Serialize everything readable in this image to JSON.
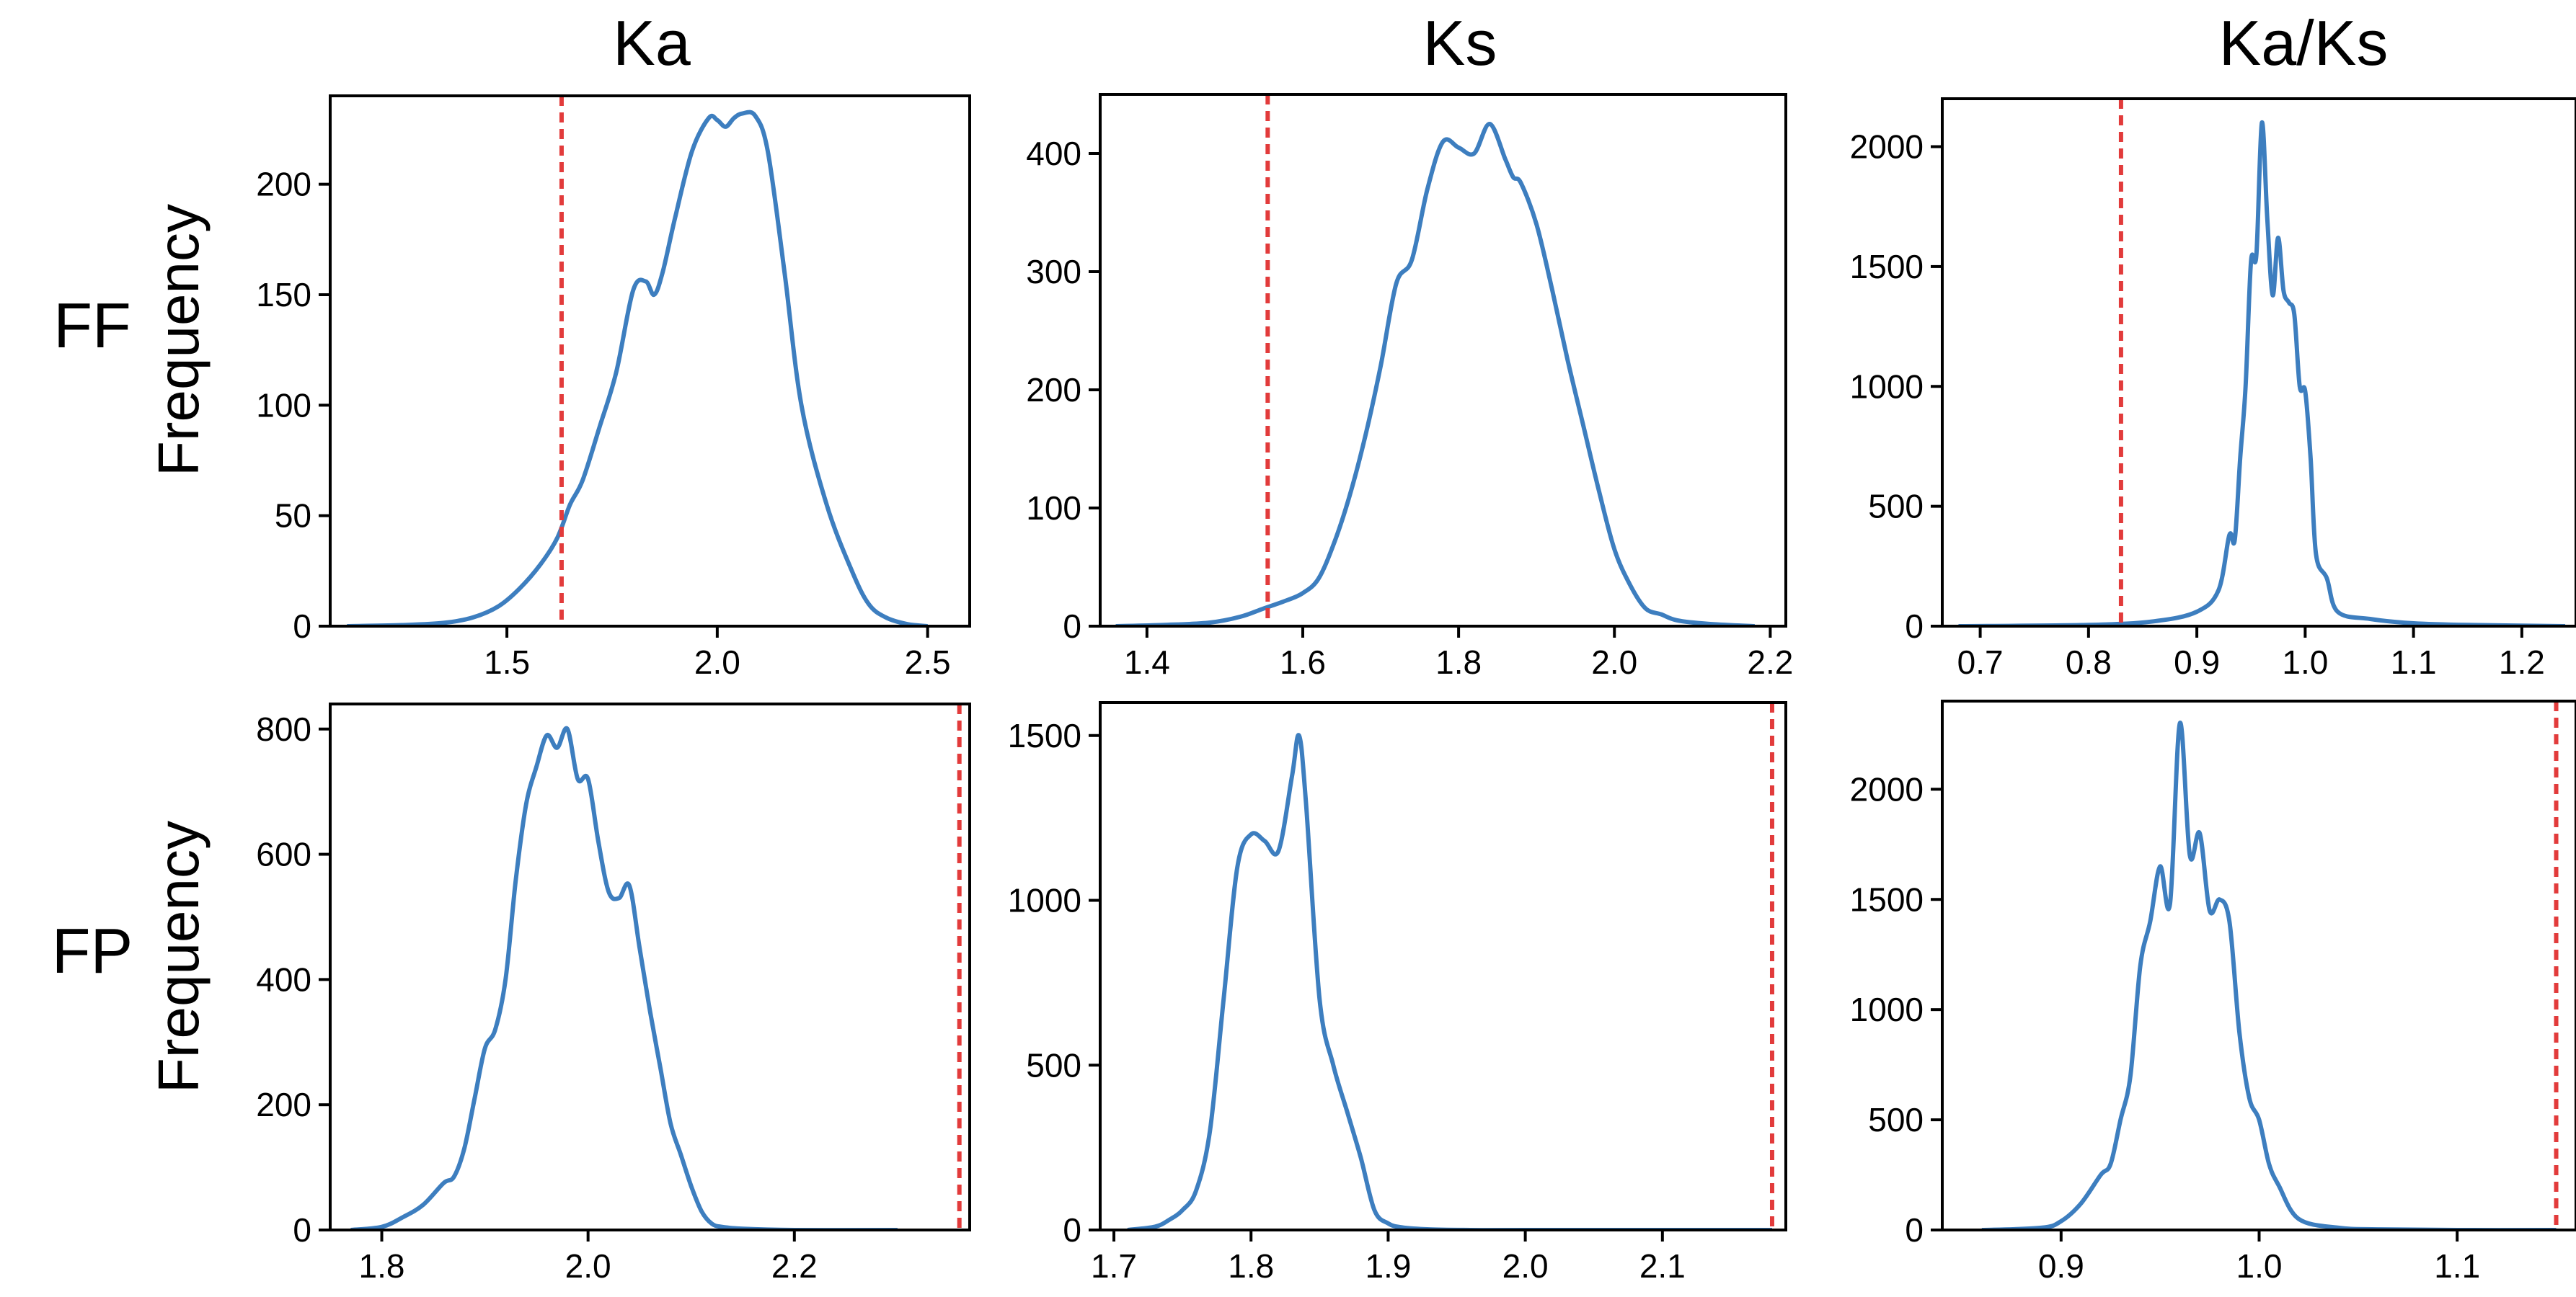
{
  "column_titles": [
    "Ka",
    "Ks",
    "Ka/Ks"
  ],
  "row_labels": [
    "FF",
    "FP"
  ],
  "ylabel": "Frequency",
  "colors": {
    "curve": "#3d7ebf",
    "reference": "#e23b3b",
    "axis": "#000000"
  },
  "chart_data": [
    {
      "type": "line",
      "row": "FF",
      "column": "Ka",
      "title": "Ka",
      "xlabel": "",
      "ylabel": "Frequency",
      "xlim": [
        1.08,
        2.6
      ],
      "ylim": [
        0,
        240
      ],
      "xticks": [
        1.5,
        2.0,
        2.5
      ],
      "yticks": [
        0,
        50,
        100,
        150,
        200
      ],
      "reference_line_x": 1.63,
      "series": [
        {
          "x": [
            1.12,
            1.25,
            1.35,
            1.42,
            1.48,
            1.53,
            1.58,
            1.62,
            1.65,
            1.68,
            1.72,
            1.76,
            1.8,
            1.83,
            1.85,
            1.87,
            1.9,
            1.94,
            1.98,
            2.0,
            2.02,
            2.04,
            2.06,
            2.09,
            2.12,
            2.16,
            2.2,
            2.26,
            2.32,
            2.36,
            2.4,
            2.45,
            2.5
          ],
          "y": [
            0,
            0.5,
            1.5,
            4,
            9,
            17,
            28,
            40,
            55,
            66,
            90,
            115,
            152,
            156,
            150,
            160,
            185,
            215,
            230,
            229,
            226,
            230,
            232,
            231,
            215,
            160,
            100,
            55,
            25,
            10,
            4,
            1,
            0
          ]
        }
      ]
    },
    {
      "type": "line",
      "row": "FF",
      "column": "Ks",
      "title": "Ks",
      "xlabel": "",
      "ylabel": "",
      "xlim": [
        1.34,
        2.22
      ],
      "ylim": [
        0,
        450
      ],
      "xticks": [
        1.4,
        1.6,
        1.8,
        2.0,
        2.2
      ],
      "yticks": [
        0,
        100,
        200,
        300,
        400
      ],
      "reference_line_x": 1.555,
      "series": [
        {
          "x": [
            1.36,
            1.42,
            1.48,
            1.52,
            1.55,
            1.58,
            1.6,
            1.62,
            1.64,
            1.66,
            1.68,
            1.7,
            1.72,
            1.74,
            1.76,
            1.78,
            1.8,
            1.82,
            1.84,
            1.86,
            1.87,
            1.88,
            1.9,
            1.92,
            1.94,
            1.96,
            1.98,
            2.0,
            2.02,
            2.04,
            2.06,
            2.08,
            2.12,
            2.18
          ],
          "y": [
            0,
            1,
            3,
            8,
            15,
            22,
            28,
            40,
            70,
            110,
            160,
            220,
            290,
            310,
            370,
            410,
            405,
            400,
            425,
            395,
            380,
            375,
            340,
            285,
            225,
            170,
            115,
            65,
            35,
            15,
            10,
            5,
            2,
            0
          ]
        }
      ]
    },
    {
      "type": "line",
      "row": "FF",
      "column": "Ka/Ks",
      "title": "Ka/Ks",
      "xlabel": "",
      "ylabel": "",
      "xlim": [
        0.665,
        1.25
      ],
      "ylim": [
        0,
        2200
      ],
      "xticks": [
        0.7,
        0.8,
        0.9,
        1.0,
        1.1,
        1.2
      ],
      "yticks": [
        0,
        500,
        1000,
        1500,
        2000
      ],
      "reference_line_x": 0.83,
      "series": [
        {
          "x": [
            0.68,
            0.8,
            0.86,
            0.9,
            0.92,
            0.93,
            0.935,
            0.94,
            0.945,
            0.95,
            0.955,
            0.96,
            0.965,
            0.97,
            0.975,
            0.98,
            0.985,
            0.99,
            0.995,
            1.0,
            1.005,
            1.01,
            1.02,
            1.03,
            1.06,
            1.1,
            1.15,
            1.24
          ],
          "y": [
            0,
            5,
            20,
            60,
            150,
            380,
            360,
            700,
            1000,
            1520,
            1550,
            2100,
            1700,
            1380,
            1620,
            1400,
            1350,
            1300,
            1000,
            980,
            700,
            300,
            200,
            60,
            30,
            12,
            5,
            0
          ]
        }
      ]
    },
    {
      "type": "line",
      "row": "FP",
      "column": "Ka",
      "title": "",
      "xlabel": "",
      "ylabel": "Frequency",
      "xlim": [
        1.75,
        2.37
      ],
      "ylim": [
        0,
        840
      ],
      "xticks": [
        1.8,
        2.0,
        2.2
      ],
      "yticks": [
        0,
        200,
        400,
        600,
        800
      ],
      "reference_line_x": 2.36,
      "series": [
        {
          "x": [
            1.77,
            1.8,
            1.82,
            1.84,
            1.86,
            1.87,
            1.88,
            1.89,
            1.9,
            1.91,
            1.92,
            1.93,
            1.94,
            1.95,
            1.96,
            1.97,
            1.98,
            1.99,
            2.0,
            2.01,
            2.02,
            2.03,
            2.04,
            2.05,
            2.06,
            2.07,
            2.08,
            2.09,
            2.1,
            2.11,
            2.12,
            2.13,
            2.15,
            2.2,
            2.3
          ],
          "y": [
            0,
            5,
            20,
            40,
            75,
            85,
            130,
            210,
            290,
            320,
            400,
            560,
            680,
            740,
            790,
            770,
            800,
            720,
            720,
            620,
            540,
            530,
            550,
            450,
            350,
            260,
            170,
            120,
            70,
            30,
            10,
            5,
            2,
            0,
            0
          ]
        }
      ]
    },
    {
      "type": "line",
      "row": "FP",
      "column": "Ks",
      "title": "",
      "xlabel": "",
      "ylabel": "",
      "xlim": [
        1.69,
        2.19
      ],
      "ylim": [
        0,
        1600
      ],
      "xticks": [
        1.7,
        1.8,
        1.9,
        2.0,
        2.1
      ],
      "yticks": [
        0,
        500,
        1000,
        1500
      ],
      "reference_line_x": 2.18,
      "series": [
        {
          "x": [
            1.71,
            1.73,
            1.74,
            1.75,
            1.76,
            1.77,
            1.78,
            1.79,
            1.8,
            1.81,
            1.82,
            1.83,
            1.835,
            1.84,
            1.85,
            1.86,
            1.87,
            1.88,
            1.89,
            1.9,
            1.91,
            1.93,
            1.96,
            2.0,
            2.1,
            2.18
          ],
          "y": [
            0,
            10,
            30,
            60,
            120,
            300,
            700,
            1100,
            1200,
            1180,
            1150,
            1380,
            1500,
            1300,
            700,
            500,
            360,
            220,
            60,
            20,
            8,
            2,
            0,
            0,
            0,
            0
          ]
        }
      ]
    },
    {
      "type": "line",
      "row": "FP",
      "column": "Ka/Ks",
      "title": "",
      "xlabel": "",
      "ylabel": "",
      "xlim": [
        0.84,
        1.16
      ],
      "ylim": [
        0,
        2400
      ],
      "xticks": [
        0.9,
        1.0,
        1.1
      ],
      "yticks": [
        0,
        500,
        1000,
        1500,
        2000
      ],
      "reference_line_x": 1.15,
      "series": [
        {
          "x": [
            0.86,
            0.89,
            0.9,
            0.91,
            0.92,
            0.925,
            0.93,
            0.935,
            0.94,
            0.945,
            0.95,
            0.955,
            0.96,
            0.965,
            0.97,
            0.975,
            0.98,
            0.985,
            0.99,
            0.995,
            1.0,
            1.005,
            1.01,
            1.02,
            1.04,
            1.06,
            1.1,
            1.15
          ],
          "y": [
            0,
            10,
            40,
            120,
            250,
            300,
            500,
            700,
            1200,
            1400,
            1650,
            1480,
            2300,
            1700,
            1800,
            1450,
            1500,
            1400,
            900,
            600,
            500,
            300,
            200,
            50,
            10,
            3,
            0,
            0
          ]
        }
      ]
    }
  ]
}
